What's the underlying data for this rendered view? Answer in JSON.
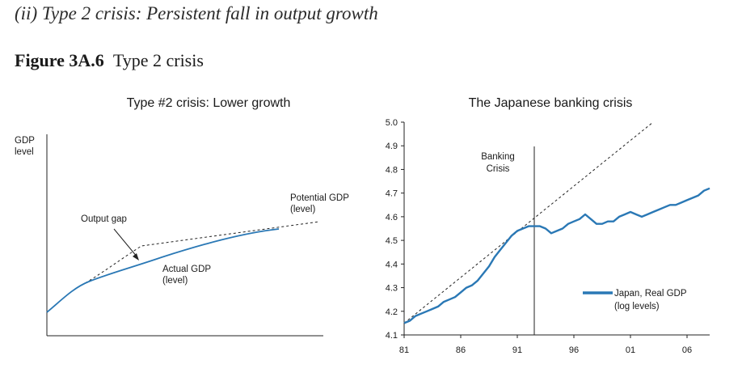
{
  "heading": "(ii) Type 2 crisis: Persistent fall in output growth",
  "caption": {
    "label": "Figure 3A.6",
    "title": "Type 2 crisis"
  },
  "colors": {
    "series": "#2a78b5",
    "axis": "#222222",
    "dashed": "#222222"
  },
  "chart_data": [
    {
      "type": "line",
      "title": "Type #2 crisis: Lower growth",
      "ylabel": "GDP level",
      "xlabel": "",
      "ticks": "none",
      "series": [
        {
          "name": "Potential GDP (level)",
          "style": "dashed"
        },
        {
          "name": "Actual GDP (level)",
          "style": "solid",
          "color": "#2a78b5"
        }
      ],
      "annotations": [
        "Output gap",
        "Potential GDP",
        "(level)",
        "Actual GDP",
        "(level)"
      ]
    },
    {
      "type": "line",
      "title": "The Japanese banking crisis",
      "xlabel": "",
      "ylabel": "",
      "xlim": [
        1981,
        2008
      ],
      "ylim": [
        4.1,
        5.0
      ],
      "xticks": [
        1981,
        1986,
        1991,
        1996,
        2001,
        2006
      ],
      "xticklabels": [
        "81",
        "86",
        "91",
        "96",
        "01",
        "06"
      ],
      "yticks": [
        "4.1",
        "4.2",
        "4.3",
        "4.4",
        "4.5",
        "4.6",
        "4.7",
        "4.8",
        "4.9",
        "5.0"
      ],
      "event": {
        "x": 1992.5,
        "label": [
          "Banking",
          "Crisis"
        ]
      },
      "trend": {
        "style": "dashed",
        "x": [
          1981,
          2003
        ],
        "y": [
          4.15,
          5.0
        ]
      },
      "series": [
        {
          "name": "Japan, Real GDP",
          "name_note": "(log levels)",
          "color": "#2a78b5",
          "x": [
            1981.0,
            1981.5,
            1982.0,
            1982.5,
            1983.0,
            1983.5,
            1984.0,
            1984.5,
            1985.0,
            1985.5,
            1986.0,
            1986.5,
            1987.0,
            1987.5,
            1988.0,
            1988.5,
            1989.0,
            1989.5,
            1990.0,
            1990.5,
            1991.0,
            1991.5,
            1992.0,
            1992.5,
            1993.0,
            1993.5,
            1994.0,
            1994.5,
            1995.0,
            1995.5,
            1996.0,
            1996.5,
            1997.0,
            1997.5,
            1998.0,
            1998.5,
            1999.0,
            1999.5,
            2000.0,
            2000.5,
            2001.0,
            2001.5,
            2002.0,
            2002.5,
            2003.0,
            2003.5,
            2004.0,
            2004.5,
            2005.0,
            2005.5,
            2006.0,
            2006.5,
            2007.0,
            2007.5,
            2008.0
          ],
          "y": [
            4.15,
            4.16,
            4.18,
            4.19,
            4.2,
            4.21,
            4.22,
            4.24,
            4.25,
            4.26,
            4.28,
            4.3,
            4.31,
            4.33,
            4.36,
            4.39,
            4.43,
            4.46,
            4.49,
            4.52,
            4.54,
            4.55,
            4.56,
            4.56,
            4.56,
            4.55,
            4.53,
            4.54,
            4.55,
            4.57,
            4.58,
            4.59,
            4.61,
            4.59,
            4.57,
            4.57,
            4.58,
            4.58,
            4.6,
            4.61,
            4.62,
            4.61,
            4.6,
            4.61,
            4.62,
            4.63,
            4.64,
            4.65,
            4.65,
            4.66,
            4.67,
            4.68,
            4.69,
            4.71,
            4.72
          ]
        }
      ]
    }
  ]
}
